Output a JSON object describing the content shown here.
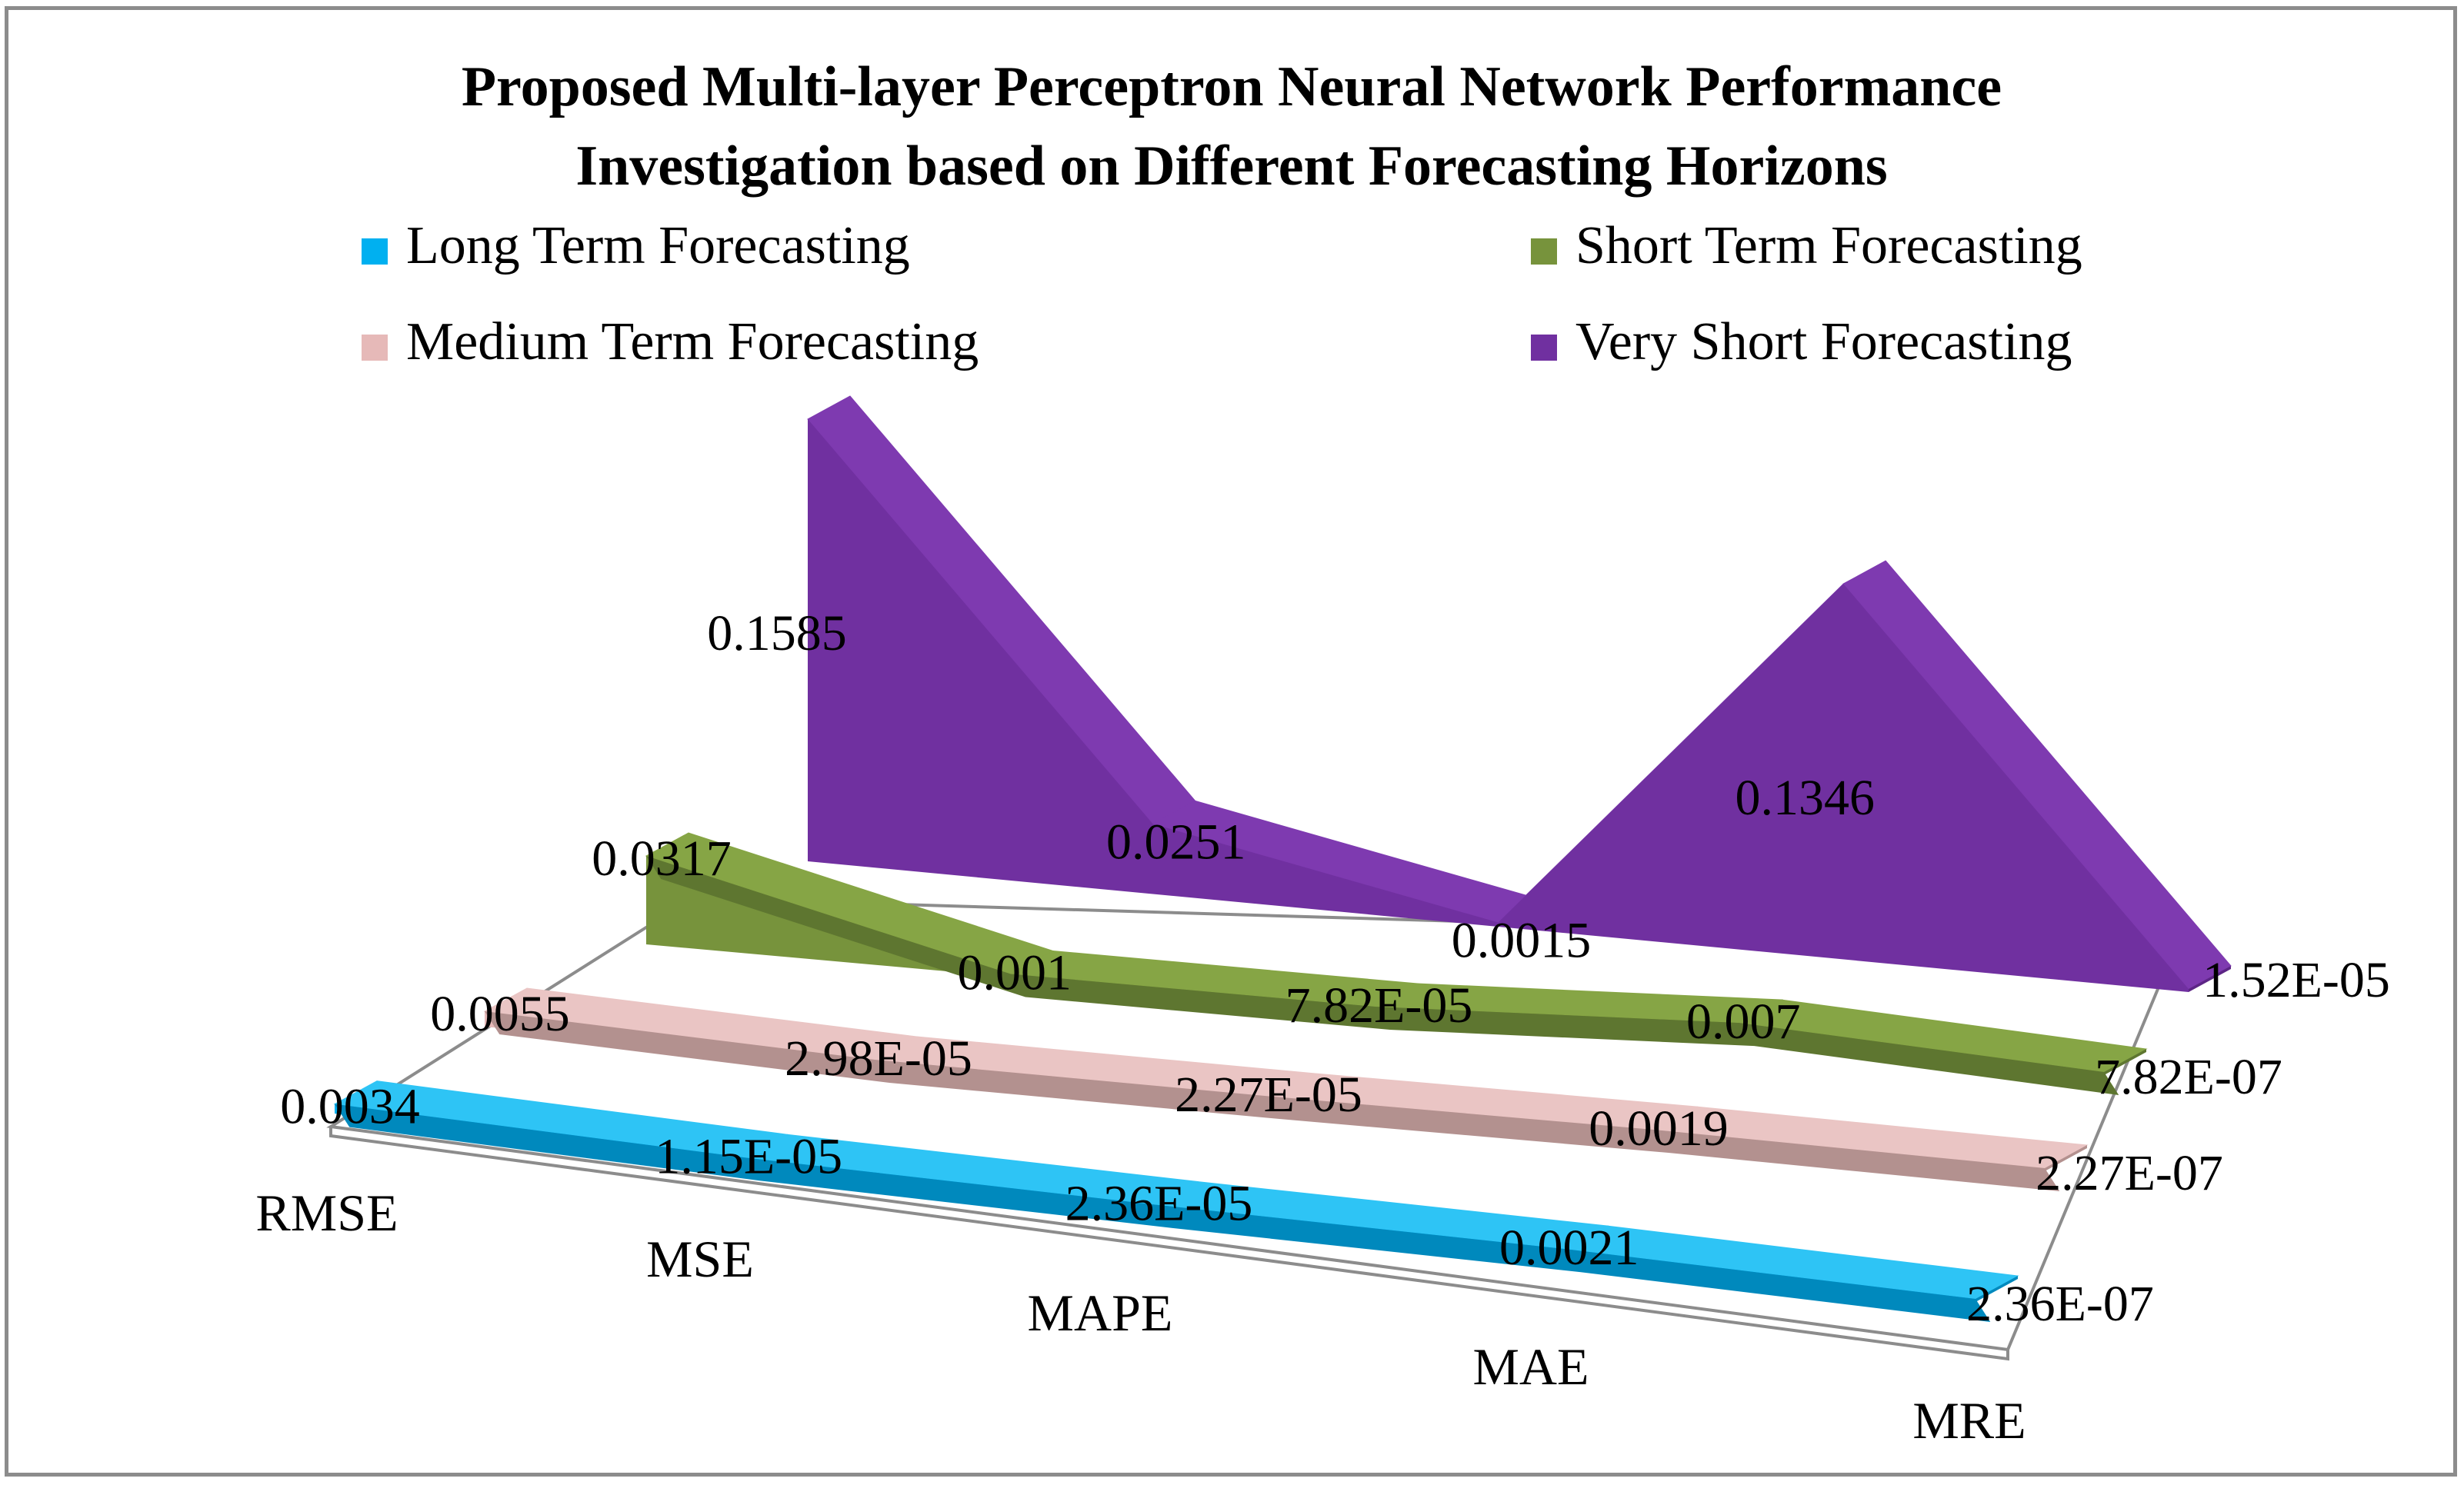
{
  "chart_data": {
    "type": "area",
    "variant": "3d-area",
    "title_lines": [
      "Proposed Multi-layer Perceptron Neural Network Performance",
      "Investigation based on Different Forecasting Horizons"
    ],
    "categories": [
      "RMSE",
      "MSE",
      "MAPE",
      "MAE",
      "MRE"
    ],
    "legend_position": "top",
    "series": [
      {
        "name": "Long Term Forecasting",
        "color": "#00b0f0",
        "top_color": "#2ec4f5",
        "front_color": "#0089bd",
        "values": [
          0.0034,
          1.15e-05,
          2.36e-05,
          0.0021,
          2.36e-07
        ],
        "labels": [
          "0.0034",
          "1.15E-05",
          "2.36E-05",
          "0.0021",
          "2.36E-07"
        ]
      },
      {
        "name": "Medium Term Forecasting",
        "color": "#e6b9b8",
        "top_color": "#eac5c4",
        "front_color": "#b3918f",
        "values": [
          0.0055,
          2.98e-05,
          2.27e-05,
          0.0019,
          2.27e-07
        ],
        "labels": [
          "0.0055",
          "2.98E-05",
          "2.27E-05",
          "0.0019",
          "2.27E-07"
        ]
      },
      {
        "name": "Short Term Forecasting",
        "color": "#77933c",
        "top_color": "#86a545",
        "front_color": "#5e7630",
        "values": [
          0.0317,
          0.001,
          7.82e-05,
          0.007,
          7.82e-07
        ],
        "labels": [
          "0.0317",
          "0.001",
          "7.82E-05",
          "0.007",
          "7.82E-07"
        ]
      },
      {
        "name": "Very Short Forecasting",
        "color": "#7030a0",
        "top_color": "#7e3ab0",
        "front_color": "#5c2585",
        "values": [
          0.1585,
          0.0251,
          0.0015,
          0.1346,
          1.52e-05
        ],
        "labels": [
          "0.1585",
          "0.0251",
          "0.0015",
          "0.1346",
          "1.52E-05"
        ]
      }
    ],
    "legend_order": [
      0,
      2,
      1,
      3
    ]
  }
}
